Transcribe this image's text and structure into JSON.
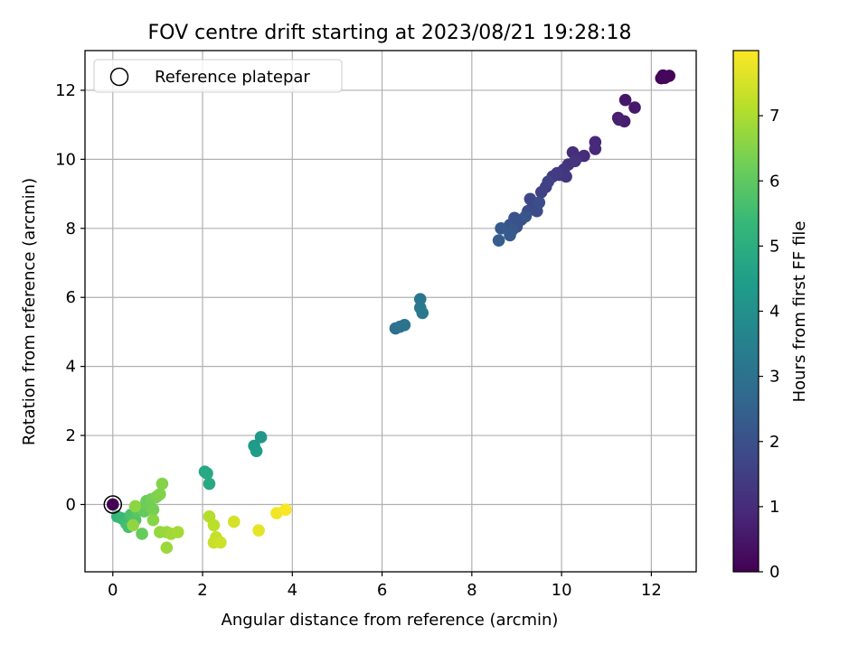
{
  "chart_data": {
    "type": "scatter",
    "title": "FOV centre drift starting at 2023/08/21 19:28:18",
    "xlabel": "Angular distance from reference (arcmin)",
    "ylabel": "Rotation from reference (arcmin)",
    "xlim": [
      -0.62,
      13.0
    ],
    "ylim": [
      -1.95,
      13.15
    ],
    "xticks": [
      0,
      2,
      4,
      6,
      8,
      10,
      12
    ],
    "yticks": [
      0,
      2,
      4,
      6,
      8,
      10,
      12
    ],
    "xtick_labels": [
      "0",
      "2",
      "4",
      "6",
      "8",
      "10",
      "12"
    ],
    "ytick_labels": [
      "0",
      "2",
      "4",
      "6",
      "8",
      "10",
      "12"
    ],
    "grid": true,
    "legend": {
      "placement": "upper-left",
      "entries": [
        {
          "label": "Reference platepar",
          "marker": "open-circle"
        }
      ]
    },
    "reference_point": {
      "x": 0,
      "y": 0
    },
    "colorbar": {
      "label": "Hours from first FF file",
      "colormap": "viridis",
      "range": [
        0,
        8.0
      ],
      "ticks": [
        0,
        1,
        2,
        3,
        4,
        5,
        6,
        7
      ],
      "tick_labels": [
        "0",
        "1",
        "2",
        "3",
        "4",
        "5",
        "6",
        "7"
      ]
    },
    "series": [
      {
        "points": [
          [
            0.0,
            0.0,
            0.0
          ],
          [
            12.22,
            12.35,
            0.05
          ],
          [
            12.32,
            12.38,
            0.08
          ],
          [
            12.26,
            12.43,
            0.1
          ],
          [
            12.4,
            12.42,
            0.12
          ],
          [
            12.3,
            12.36,
            0.14
          ],
          [
            11.42,
            11.72,
            0.5
          ],
          [
            11.63,
            11.5,
            0.55
          ],
          [
            11.26,
            11.2,
            0.6
          ],
          [
            11.4,
            11.1,
            0.65
          ],
          [
            11.28,
            11.15,
            0.7
          ],
          [
            10.75,
            10.5,
            0.9
          ],
          [
            10.75,
            10.3,
            0.95
          ],
          [
            10.5,
            10.1,
            1.0
          ],
          [
            10.25,
            10.2,
            1.05
          ],
          [
            10.35,
            10.05,
            1.1
          ],
          [
            10.15,
            9.85,
            1.15
          ],
          [
            10.3,
            9.95,
            1.2
          ],
          [
            10.05,
            9.7,
            1.25
          ],
          [
            10.1,
            9.5,
            1.3
          ],
          [
            9.95,
            9.55,
            1.35
          ],
          [
            9.9,
            9.6,
            1.4
          ],
          [
            9.8,
            9.5,
            1.45
          ],
          [
            9.65,
            9.2,
            1.5
          ],
          [
            9.55,
            9.05,
            1.55
          ],
          [
            9.7,
            9.35,
            1.6
          ],
          [
            9.4,
            8.7,
            1.65
          ],
          [
            9.35,
            8.6,
            1.7
          ],
          [
            9.3,
            8.85,
            1.75
          ],
          [
            9.25,
            8.5,
            1.8
          ],
          [
            9.45,
            8.5,
            1.85
          ],
          [
            9.5,
            8.75,
            1.9
          ],
          [
            9.1,
            8.25,
            1.95
          ],
          [
            9.0,
            8.05,
            2.0
          ],
          [
            8.95,
            8.3,
            2.05
          ],
          [
            8.85,
            8.1,
            2.1
          ],
          [
            9.2,
            8.35,
            2.15
          ],
          [
            8.9,
            7.95,
            2.2
          ],
          [
            8.65,
            8.0,
            2.25
          ],
          [
            8.85,
            7.8,
            2.3
          ],
          [
            8.6,
            7.65,
            2.35
          ],
          [
            6.3,
            5.1,
            2.9
          ],
          [
            6.4,
            5.15,
            3.0
          ],
          [
            6.5,
            5.2,
            3.05
          ],
          [
            6.85,
            5.95,
            3.15
          ],
          [
            6.85,
            5.7,
            3.2
          ],
          [
            6.9,
            5.55,
            3.25
          ],
          [
            3.3,
            1.95,
            4.3
          ],
          [
            3.15,
            1.7,
            4.35
          ],
          [
            3.2,
            1.55,
            4.4
          ],
          [
            2.05,
            0.95,
            4.75
          ],
          [
            2.1,
            0.9,
            4.8
          ],
          [
            2.15,
            0.6,
            4.85
          ],
          [
            0.1,
            -0.35,
            5.3
          ],
          [
            0.2,
            -0.4,
            5.4
          ],
          [
            0.3,
            -0.55,
            5.5
          ],
          [
            0.35,
            -0.65,
            5.6
          ],
          [
            0.4,
            -0.3,
            5.7
          ],
          [
            0.5,
            -0.45,
            5.8
          ],
          [
            0.55,
            -0.2,
            5.9
          ],
          [
            0.6,
            -0.1,
            6.0
          ],
          [
            0.7,
            -0.2,
            6.05
          ],
          [
            0.65,
            -0.85,
            6.1
          ],
          [
            0.75,
            0.1,
            6.15
          ],
          [
            0.8,
            -0.05,
            6.2
          ],
          [
            0.85,
            0.15,
            6.25
          ],
          [
            0.9,
            -0.15,
            6.3
          ],
          [
            0.95,
            0.2,
            6.35
          ],
          [
            1.0,
            0.25,
            6.4
          ],
          [
            1.05,
            0.3,
            6.45
          ],
          [
            1.1,
            0.6,
            6.5
          ],
          [
            0.9,
            -0.45,
            6.55
          ],
          [
            0.5,
            -0.05,
            6.6
          ],
          [
            0.45,
            -0.6,
            6.65
          ],
          [
            1.05,
            -0.8,
            6.7
          ],
          [
            1.2,
            -0.8,
            6.75
          ],
          [
            1.2,
            -1.25,
            6.8
          ],
          [
            1.3,
            -0.85,
            6.85
          ],
          [
            1.45,
            -0.8,
            6.9
          ],
          [
            2.15,
            -0.35,
            7.1
          ],
          [
            2.25,
            -0.6,
            7.2
          ],
          [
            2.3,
            -0.95,
            7.3
          ],
          [
            2.25,
            -1.1,
            7.35
          ],
          [
            2.4,
            -1.1,
            7.4
          ],
          [
            2.7,
            -0.5,
            7.5
          ],
          [
            3.25,
            -0.75,
            7.7
          ],
          [
            3.65,
            -0.25,
            7.85
          ],
          [
            3.85,
            -0.15,
            7.95
          ]
        ]
      }
    ]
  }
}
